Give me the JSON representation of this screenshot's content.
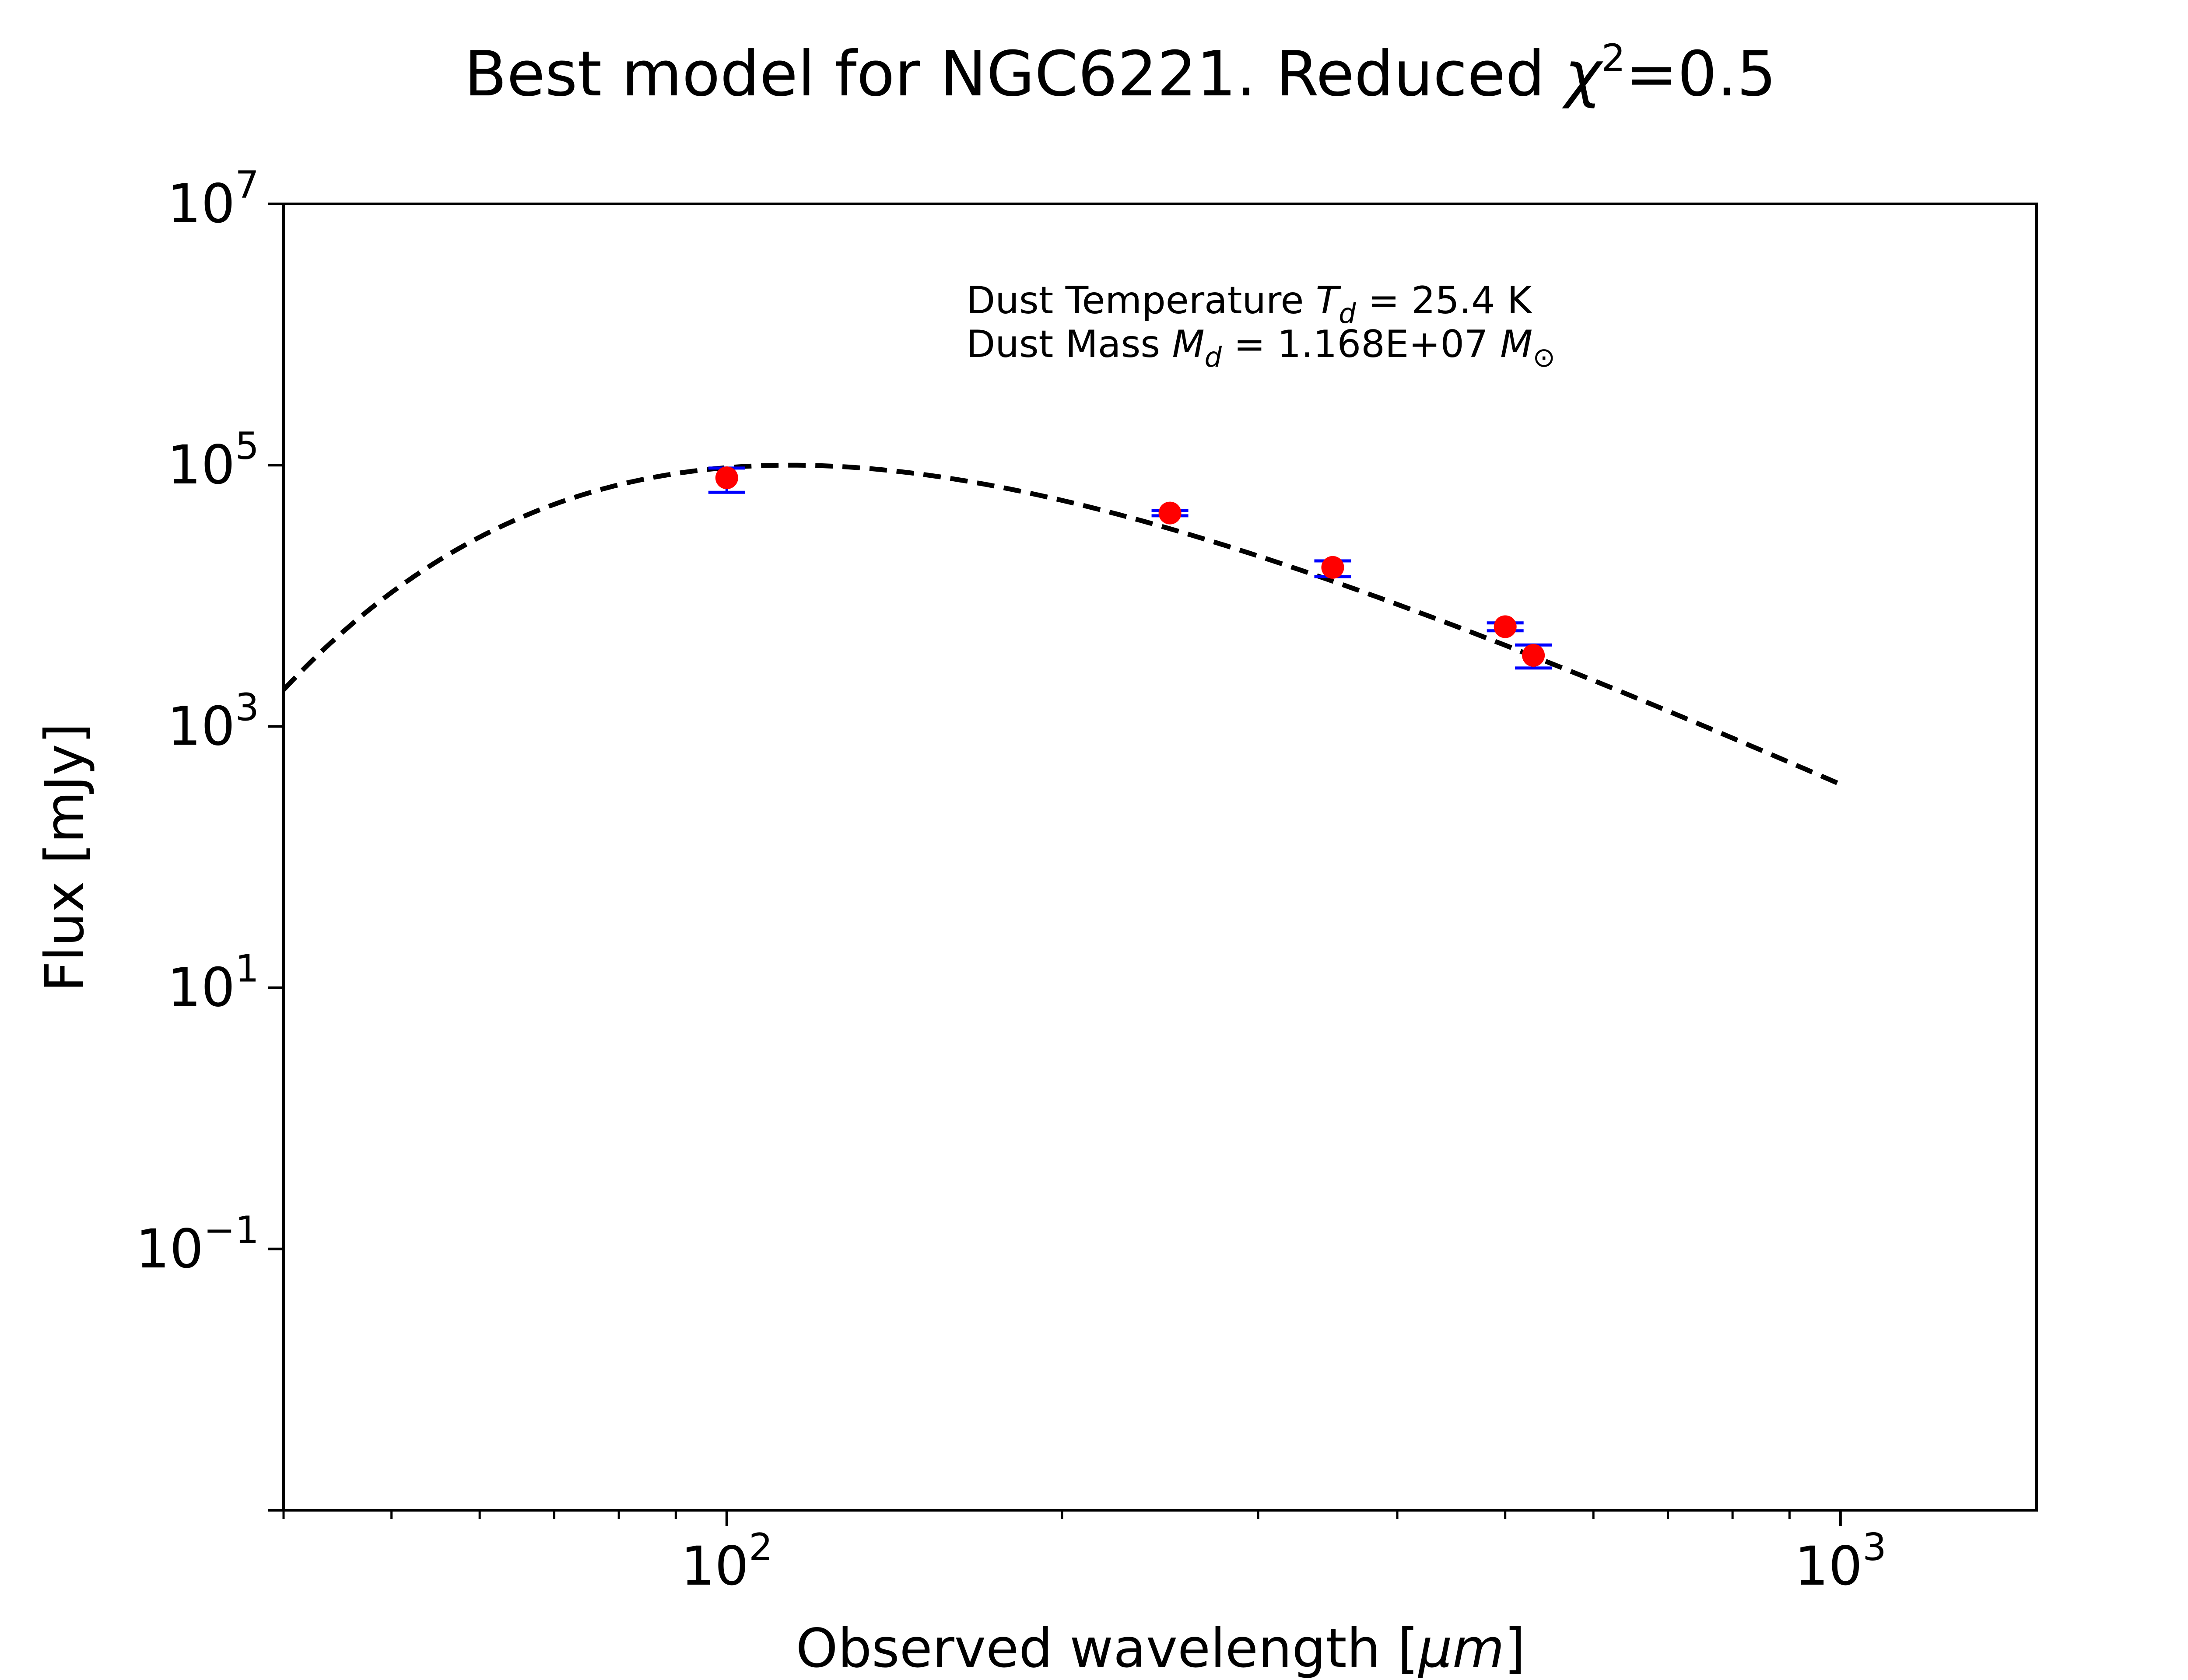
{
  "chart_data": {
    "type": "scatter",
    "title_prefix": "Best model for NGC6221. Reduced ",
    "title_symbol": "χ",
    "title_symbol_exp": "2",
    "title_suffix": "=0.5",
    "xlabel_prefix": "Observed wavelength [",
    "xlabel_unit": "μm",
    "xlabel_suffix": "]",
    "ylabel": "Flux [mJy]",
    "xscale": "log",
    "yscale": "log",
    "xlim": [
      40,
      1500
    ],
    "ylim": [
      0.001,
      10000000
    ],
    "grid": false,
    "x_ticks": [
      {
        "value": 100,
        "base": "10",
        "exp": "2"
      },
      {
        "value": 1000,
        "base": "10",
        "exp": "3"
      }
    ],
    "y_ticks": [
      {
        "value": 0.1,
        "base": "10",
        "exp": "−1"
      },
      {
        "value": 10,
        "base": "10",
        "exp": "1"
      },
      {
        "value": 1000,
        "base": "10",
        "exp": "3"
      },
      {
        "value": 100000,
        "base": "10",
        "exp": "5"
      },
      {
        "value": 10000000,
        "base": "10",
        "exp": "7"
      }
    ],
    "annotation": {
      "line1_prefix": "Dust Temperature ",
      "line1_symbol": "T",
      "line1_sub": "d",
      "line1_suffix": " = 25.4 K",
      "line2_prefix": "Dust Mass ",
      "line2_symbol": "M",
      "line2_sub": "d",
      "line2_suffix": " = 1.168E+07 ",
      "line2_unit": "M",
      "line2_unit_sub": "⊙"
    },
    "observed": {
      "color": "#ff0000",
      "errorbar_color": "#0000ff",
      "points": [
        {
          "x": 100,
          "y": 80000,
          "y_low": 62000,
          "y_high": 95000
        },
        {
          "x": 250,
          "y": 43000,
          "y_low": 41000,
          "y_high": 45000
        },
        {
          "x": 350,
          "y": 16500,
          "y_low": 14000,
          "y_high": 18500
        },
        {
          "x": 500,
          "y": 5800,
          "y_low": 5400,
          "y_high": 6200
        },
        {
          "x": 530,
          "y": 3500,
          "y_low": 2800,
          "y_high": 4200
        }
      ]
    },
    "model": {
      "style": "dashed",
      "color": "#000000",
      "temperature_K": 25.4,
      "x_range": [
        40,
        1000
      ],
      "peak_flux": 100000
    }
  }
}
